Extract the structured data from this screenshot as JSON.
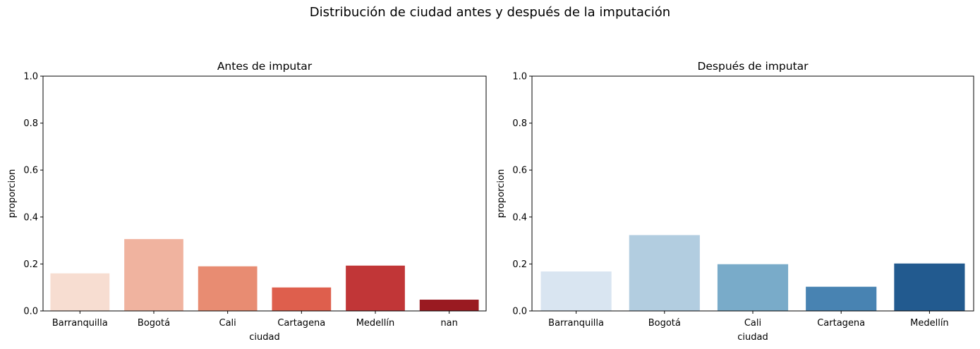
{
  "suptitle": "Distribución de ciudad antes y después de la imputación",
  "chart_data": [
    {
      "type": "bar",
      "title": "Antes de imputar",
      "xlabel": "ciudad",
      "ylabel": "proporcion",
      "ylim": [
        0,
        1.0
      ],
      "yticks": [
        "0.0",
        "0.2",
        "0.4",
        "0.6",
        "0.8",
        "1.0"
      ],
      "grid": false,
      "categories": [
        "Barranquilla",
        "Bogotá",
        "Cali",
        "Cartagena",
        "Medellín",
        "nan"
      ],
      "values": [
        0.16,
        0.306,
        0.19,
        0.1,
        0.193,
        0.048
      ],
      "colors": [
        "#f7ddd1",
        "#f0b39f",
        "#e88c72",
        "#de5f4d",
        "#c13637",
        "#9a1a21"
      ]
    },
    {
      "type": "bar",
      "title": "Después de imputar",
      "xlabel": "ciudad",
      "ylabel": "proporcion",
      "ylim": [
        0,
        1.0
      ],
      "yticks": [
        "0.0",
        "0.2",
        "0.4",
        "0.6",
        "0.8",
        "1.0"
      ],
      "grid": false,
      "categories": [
        "Barranquilla",
        "Bogotá",
        "Cali",
        "Cartagena",
        "Medellín"
      ],
      "values": [
        0.168,
        0.323,
        0.199,
        0.103,
        0.202
      ],
      "colors": [
        "#d9e5f1",
        "#b2cde0",
        "#79abc9",
        "#4883b2",
        "#225a8f"
      ]
    }
  ]
}
